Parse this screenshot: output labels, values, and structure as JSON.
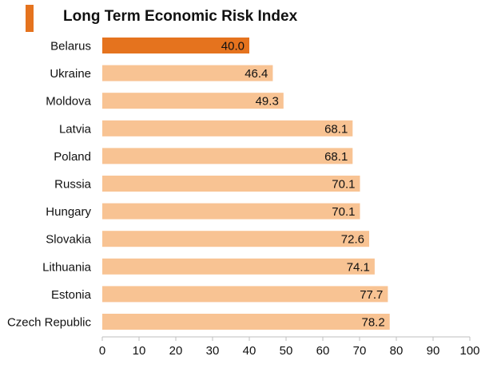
{
  "chart_data": {
    "type": "bar",
    "orientation": "horizontal",
    "title": "Long Term Economic Risk Index",
    "categories": [
      "Belarus",
      "Ukraine",
      "Moldova",
      "Latvia",
      "Poland",
      "Russia",
      "Hungary",
      "Slovakia",
      "Lithuania",
      "Estonia",
      "Czech Republic"
    ],
    "values": [
      40.0,
      46.4,
      49.3,
      68.1,
      68.1,
      70.1,
      70.1,
      72.6,
      74.1,
      77.7,
      78.2
    ],
    "data_labels": [
      "40.0",
      "46.4",
      "49.3",
      "68.1",
      "68.1",
      "70.1",
      "70.1",
      "72.6",
      "74.1",
      "77.7",
      "78.2"
    ],
    "highlight_category": "Belarus",
    "xlim": [
      0,
      100
    ],
    "xticks": [
      0,
      10,
      20,
      30,
      40,
      50,
      60,
      70,
      80,
      90,
      100
    ],
    "xlabel": "",
    "ylabel": "",
    "grid": false,
    "legend": "none"
  },
  "colors": {
    "bar": "#f8c393",
    "highlight": "#e5731e",
    "title_marker": "#e5731e",
    "axis": "#bfbfbf",
    "text": "#111111"
  }
}
